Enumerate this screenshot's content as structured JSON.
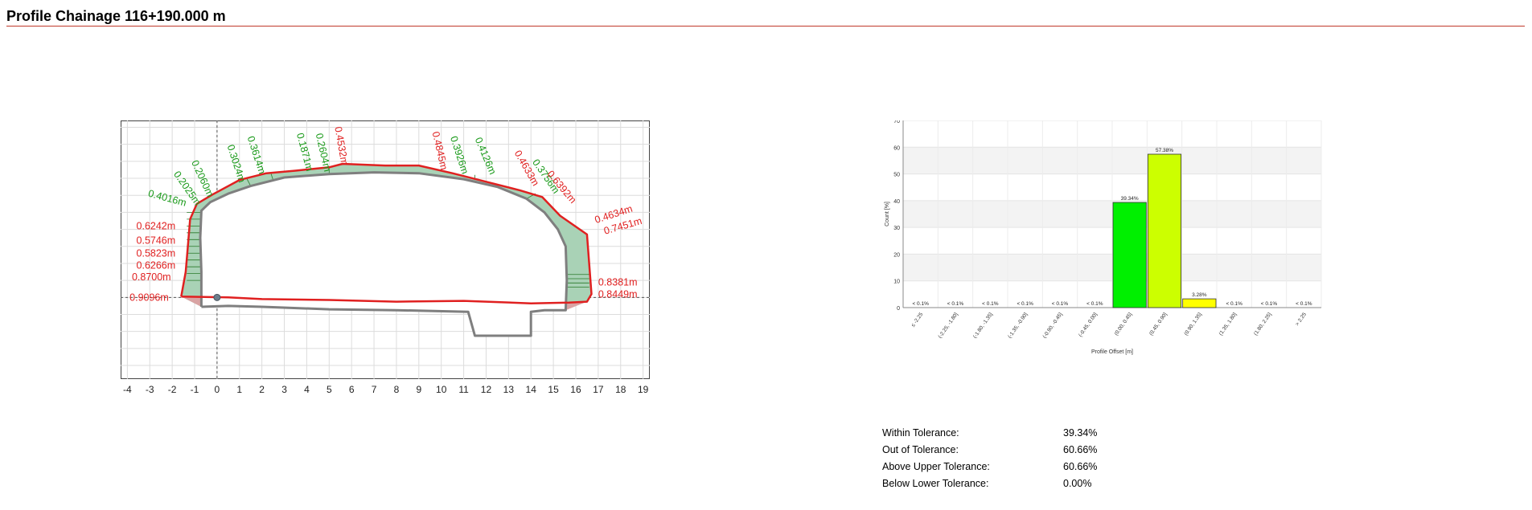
{
  "header": {
    "title": "Profile Chainage 116+190.000 m"
  },
  "colors": {
    "design": "#e02020",
    "scan": "#7f7f7f",
    "over_fill": "#a9d2b6",
    "under_fill": "#d9a3a3",
    "label_green": "#1a9a1a",
    "label_red": "#e02020",
    "bar_green": "#00f000",
    "bar_lime": "#ccff00",
    "bar_yellow": "#ffff00"
  },
  "chart_data": [
    {
      "type": "line",
      "x": {
        "ticks": [
          -4,
          -3,
          -2,
          -1,
          0,
          1,
          2,
          3,
          4,
          5,
          6,
          7,
          8,
          9,
          10,
          11,
          12,
          13,
          14,
          15,
          16,
          17,
          18,
          19
        ],
        "range": [
          -4.3,
          19.3
        ]
      },
      "y": {
        "ticks": [
          -4,
          -3,
          -2,
          -1,
          0,
          1,
          2,
          3,
          4,
          5,
          6,
          7,
          8,
          9,
          10
        ],
        "range": [
          -4.8,
          10.4
        ]
      },
      "grid": true,
      "origin_marker": [
        0,
        0
      ],
      "design_profile": [
        [
          -1.6,
          0.05
        ],
        [
          -1.4,
          1.5
        ],
        [
          -1.3,
          3.0
        ],
        [
          -1.2,
          4.6
        ],
        [
          -0.9,
          5.5
        ],
        [
          -0.2,
          6.05
        ],
        [
          1.0,
          6.9
        ],
        [
          2.2,
          7.3
        ],
        [
          3.5,
          7.45
        ],
        [
          5.0,
          7.65
        ],
        [
          5.6,
          7.85
        ],
        [
          7.5,
          7.75
        ],
        [
          9.0,
          7.75
        ],
        [
          10.5,
          7.3
        ],
        [
          12.0,
          6.8
        ],
        [
          13.5,
          6.3
        ],
        [
          14.5,
          5.9
        ],
        [
          15.3,
          4.8
        ],
        [
          16.5,
          3.7
        ],
        [
          16.7,
          0.2
        ],
        [
          16.5,
          -0.25
        ],
        [
          15.7,
          -0.3
        ],
        [
          14.0,
          -0.35
        ],
        [
          11.0,
          -0.2
        ],
        [
          8.0,
          -0.25
        ],
        [
          5.0,
          -0.15
        ],
        [
          2.0,
          -0.1
        ],
        [
          0.5,
          0.0
        ],
        [
          -1.6,
          0.05
        ]
      ],
      "scan_profile": [
        [
          -0.7,
          -0.55
        ],
        [
          -0.7,
          1.5
        ],
        [
          -0.75,
          3.5
        ],
        [
          -0.7,
          5.1
        ],
        [
          -0.3,
          5.6
        ],
        [
          0.5,
          6.1
        ],
        [
          1.5,
          6.55
        ],
        [
          3.0,
          7.05
        ],
        [
          5.0,
          7.25
        ],
        [
          7.0,
          7.35
        ],
        [
          9.0,
          7.3
        ],
        [
          11.0,
          6.95
        ],
        [
          12.5,
          6.5
        ],
        [
          13.8,
          5.8
        ],
        [
          14.6,
          5.0
        ],
        [
          15.2,
          4.0
        ],
        [
          15.55,
          3.0
        ],
        [
          15.6,
          1.0
        ],
        [
          15.55,
          -0.75
        ],
        [
          14.6,
          -0.75
        ],
        [
          14.0,
          -0.85
        ],
        [
          14.0,
          -2.25
        ],
        [
          11.5,
          -2.25
        ],
        [
          11.2,
          -0.85
        ],
        [
          8.0,
          -0.75
        ],
        [
          5.0,
          -0.7
        ],
        [
          2.0,
          -0.55
        ],
        [
          0.5,
          -0.5
        ],
        [
          -0.7,
          -0.55
        ]
      ],
      "annotations": [
        {
          "text": "0.4016m",
          "x": -3.1,
          "y": 5.95,
          "angle": 15,
          "color": "green"
        },
        {
          "text": "0.2025m",
          "x": -1.95,
          "y": 7.25,
          "angle": 55,
          "color": "green"
        },
        {
          "text": "0.2060m",
          "x": -1.15,
          "y": 7.95,
          "angle": 65,
          "color": "green"
        },
        {
          "text": "0.3024m",
          "x": 0.45,
          "y": 8.9,
          "angle": 72,
          "color": "green"
        },
        {
          "text": "0.3614m",
          "x": 1.35,
          "y": 9.4,
          "angle": 72,
          "color": "green"
        },
        {
          "text": "0.1871m",
          "x": 3.55,
          "y": 9.6,
          "angle": 75,
          "color": "green"
        },
        {
          "text": "0.2604m",
          "x": 4.4,
          "y": 9.6,
          "angle": 77,
          "color": "green"
        },
        {
          "text": "0.4532m",
          "x": 5.25,
          "y": 10.0,
          "angle": 80,
          "color": "red"
        },
        {
          "text": "0.4845m",
          "x": 9.6,
          "y": 9.7,
          "angle": 77,
          "color": "red"
        },
        {
          "text": "0.3926m",
          "x": 10.4,
          "y": 9.4,
          "angle": 72,
          "color": "green"
        },
        {
          "text": "0.4126m",
          "x": 11.5,
          "y": 9.3,
          "angle": 67,
          "color": "green"
        },
        {
          "text": "0.4633m",
          "x": 13.25,
          "y": 8.5,
          "angle": 60,
          "color": "red"
        },
        {
          "text": "0.3756m",
          "x": 14.05,
          "y": 7.95,
          "angle": 55,
          "color": "green"
        },
        {
          "text": "0.6392m",
          "x": 14.7,
          "y": 7.25,
          "angle": 50,
          "color": "red"
        },
        {
          "text": "0.4634m",
          "x": 16.9,
          "y": 4.35,
          "angle": -18,
          "color": "red"
        },
        {
          "text": "0.7451m",
          "x": 17.3,
          "y": 3.7,
          "angle": -16,
          "color": "red"
        },
        {
          "text": "0.6242m",
          "x": -3.6,
          "y": 4.0,
          "angle": 0,
          "color": "red"
        },
        {
          "text": "0.5746m",
          "x": -3.6,
          "y": 3.15,
          "angle": 0,
          "color": "red"
        },
        {
          "text": "0.5823m",
          "x": -3.6,
          "y": 2.4,
          "angle": 0,
          "color": "red"
        },
        {
          "text": "0.6266m",
          "x": -3.6,
          "y": 1.7,
          "angle": 0,
          "color": "red"
        },
        {
          "text": "0.8700m",
          "x": -3.8,
          "y": 1.0,
          "angle": 0,
          "color": "red"
        },
        {
          "text": "0.9096m",
          "x": -3.9,
          "y": -0.2,
          "angle": 0,
          "color": "red"
        },
        {
          "text": "0.8381m",
          "x": 17.0,
          "y": 0.7,
          "angle": 0,
          "color": "red"
        },
        {
          "text": "0.8449m",
          "x": 17.0,
          "y": 0.0,
          "angle": 0,
          "color": "red"
        }
      ]
    },
    {
      "type": "bar",
      "categories": [
        "≤ -2.25",
        "(-2.25, -1.80]",
        "(-1.80, -1.35]",
        "(-1.35, -0.90]",
        "(-0.90, -0.45]",
        "(-0.45, 0.00]",
        "(0.00, 0.45]",
        "(0.45, 0.90]",
        "(0.90, 1.35]",
        "(1.35, 1.80]",
        "(1.80, 2.25]",
        "> 2.25"
      ],
      "values": [
        0,
        0,
        0,
        0,
        0,
        0,
        39.34,
        57.38,
        3.28,
        0,
        0,
        0
      ],
      "bar_labels": [
        "< 0.1%",
        "< 0.1%",
        "< 0.1%",
        "< 0.1%",
        "< 0.1%",
        "< 0.1%",
        "39.34%",
        "57.38%",
        "3.28%",
        "< 0.1%",
        "< 0.1%",
        "< 0.1%"
      ],
      "bar_colors": [
        "",
        "",
        "",
        "",
        "",
        "",
        "#00f000",
        "#ccff00",
        "#ffff00",
        "",
        "",
        ""
      ],
      "xlabel": "Profile Offset [m]",
      "ylabel": "Count [%]",
      "ylim": [
        0,
        70
      ],
      "yticks": [
        0,
        10,
        20,
        30,
        40,
        50,
        60,
        70
      ],
      "grid": true
    }
  ],
  "stats": [
    {
      "label": "Within Tolerance:",
      "value": "39.34%"
    },
    {
      "label": "Out of Tolerance:",
      "value": "60.66%"
    },
    {
      "label": "Above Upper Tolerance:",
      "value": "60.66%"
    },
    {
      "label": "Below Lower Tolerance:",
      "value": "0.00%"
    }
  ]
}
